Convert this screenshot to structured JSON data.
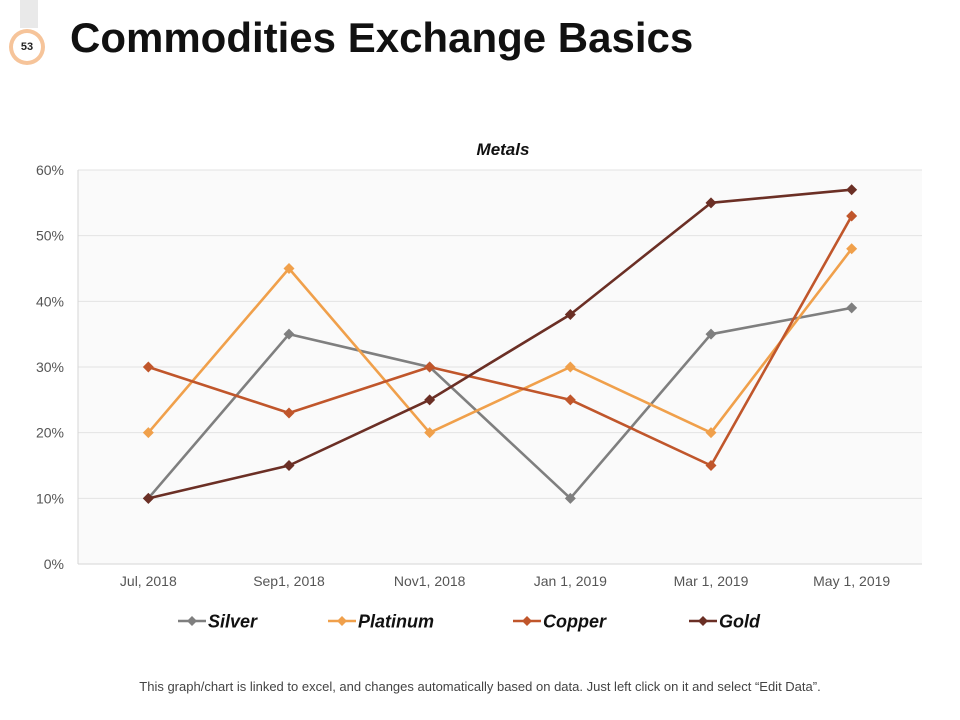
{
  "slide": {
    "number": "53",
    "title": "Commodities Exchange Basics",
    "footnote": "This graph/chart is linked to excel, and changes automatically  based on data. Just left click on it and select “Edit Data”."
  },
  "colors": {
    "Silver": "#7f7f7f",
    "Platinum": "#f0a04b",
    "Copper": "#c0562b",
    "Gold": "#6b2f25"
  },
  "chart_data": {
    "type": "line",
    "title": "Metals",
    "categories": [
      "Jul, 2018",
      "Sep1, 2018",
      "Nov1, 2018",
      "Jan 1, 2019",
      "Mar 1, 2019",
      "May 1, 2019"
    ],
    "ylim": [
      0,
      60
    ],
    "yticks": [
      "0%",
      "10%",
      "20%",
      "30%",
      "40%",
      "50%",
      "60%"
    ],
    "ytick_values": [
      0,
      10,
      20,
      30,
      40,
      50,
      60
    ],
    "grid": true,
    "legend": "bottom",
    "marker": "diamond",
    "series": [
      {
        "name": "Silver",
        "values": [
          10,
          35,
          30,
          10,
          35,
          39
        ]
      },
      {
        "name": "Platinum",
        "values": [
          20,
          45,
          20,
          30,
          20,
          48
        ]
      },
      {
        "name": "Copper",
        "values": [
          30,
          23,
          30,
          25,
          15,
          53
        ]
      },
      {
        "name": "Gold",
        "values": [
          10,
          15,
          25,
          38,
          55,
          57
        ]
      }
    ]
  }
}
